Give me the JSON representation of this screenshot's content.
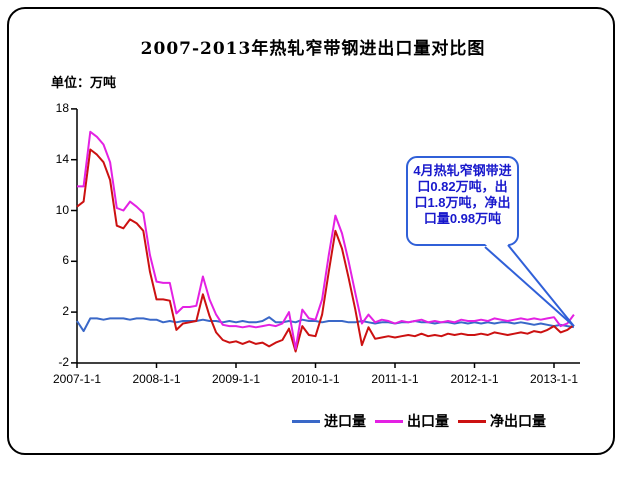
{
  "header": {
    "title": "2007-2013年热轧窄带钢进出口量对比图",
    "unit_label": "单位：万吨"
  },
  "annotation": {
    "text": "4月热轧窄钢带进口0.82万吨，出口1.8万吨，净出口量0.98万吨"
  },
  "legend": [
    {
      "label": "进口量",
      "color": "#3A68C8"
    },
    {
      "label": "出口量",
      "color": "#E321E3"
    },
    {
      "label": "净出口量",
      "color": "#CC1111"
    }
  ],
  "colors": {
    "import_line": "#3A68C8",
    "export_line": "#E321E3",
    "net_export_line": "#CC1111",
    "annotation_border": "#3060D8",
    "annotation_text": "#1818CC",
    "axis": "#000000"
  },
  "chart_data": {
    "type": "line",
    "title": "2007-2013年热轧窄带钢进出口量对比图",
    "unit": "万吨",
    "x_interval": "monthly",
    "x_start": "2007-01",
    "x_end": "2013-04",
    "x_tick_labels": [
      "2007-1-1",
      "2008-1-1",
      "2009-1-1",
      "2010-1-1",
      "2011-1-1",
      "2012-1-1",
      "2013-1-1"
    ],
    "y_ticks": [
      18,
      14,
      10,
      6,
      2,
      -2
    ],
    "ylim": [
      -2,
      18
    ],
    "grid": false,
    "legend_position": "bottom",
    "highlighted_point": {
      "month": "2013-04",
      "import": 0.82,
      "export": 1.8,
      "net_export": 0.98
    },
    "series": [
      {
        "name": "进口量",
        "color": "#3A68C8",
        "values": [
          1.3,
          0.5,
          1.5,
          1.5,
          1.4,
          1.5,
          1.5,
          1.5,
          1.4,
          1.5,
          1.5,
          1.4,
          1.4,
          1.2,
          1.3,
          1.2,
          1.3,
          1.3,
          1.3,
          1.4,
          1.3,
          1.3,
          1.2,
          1.3,
          1.2,
          1.3,
          1.2,
          1.2,
          1.3,
          1.6,
          1.2,
          1.2,
          1.3,
          1.2,
          1.4,
          1.3,
          1.3,
          1.2,
          1.3,
          1.3,
          1.3,
          1.2,
          1.2,
          1.3,
          1.2,
          1.1,
          1.2,
          1.2,
          1.1,
          1.2,
          1.2,
          1.3,
          1.2,
          1.2,
          1.1,
          1.2,
          1.2,
          1.1,
          1.2,
          1.1,
          1.2,
          1.1,
          1.2,
          1.1,
          1.2,
          1.2,
          1.1,
          1.2,
          1.1,
          1.0,
          1.1,
          1.0,
          0.9,
          1.0,
          0.9,
          0.82
        ]
      },
      {
        "name": "出口量",
        "color": "#E321E3",
        "values": [
          11.9,
          11.9,
          16.2,
          15.8,
          15.2,
          13.8,
          10.2,
          10.0,
          10.7,
          10.3,
          9.8,
          6.5,
          4.4,
          4.3,
          4.3,
          1.9,
          2.4,
          2.4,
          2.5,
          4.8,
          3.0,
          1.8,
          1.0,
          0.9,
          0.9,
          0.8,
          0.9,
          0.8,
          0.9,
          1.0,
          0.9,
          1.1,
          2.0,
          -0.9,
          2.2,
          1.5,
          1.4,
          3.0,
          6.5,
          9.6,
          8.2,
          6.0,
          3.5,
          1.1,
          1.8,
          1.2,
          1.4,
          1.3,
          1.1,
          1.3,
          1.2,
          1.3,
          1.4,
          1.2,
          1.3,
          1.2,
          1.3,
          1.2,
          1.4,
          1.3,
          1.3,
          1.4,
          1.3,
          1.5,
          1.4,
          1.3,
          1.4,
          1.5,
          1.4,
          1.5,
          1.4,
          1.5,
          1.6,
          0.9,
          1.1,
          1.8
        ]
      },
      {
        "name": "净出口量",
        "color": "#CC1111",
        "values": [
          10.3,
          10.7,
          14.8,
          14.4,
          13.8,
          12.4,
          8.8,
          8.6,
          9.3,
          9.0,
          8.4,
          5.2,
          3.0,
          3.0,
          2.9,
          0.6,
          1.1,
          1.2,
          1.3,
          3.4,
          1.7,
          0.4,
          -0.2,
          -0.4,
          -0.3,
          -0.5,
          -0.3,
          -0.5,
          -0.4,
          -0.7,
          -0.4,
          -0.2,
          0.7,
          -1.1,
          0.9,
          0.2,
          0.1,
          1.8,
          5.2,
          8.4,
          7.0,
          4.7,
          2.2,
          -0.6,
          0.8,
          -0.1,
          0.0,
          0.1,
          0.0,
          0.1,
          0.2,
          0.1,
          0.3,
          0.1,
          0.2,
          0.1,
          0.3,
          0.2,
          0.3,
          0.2,
          0.2,
          0.3,
          0.2,
          0.4,
          0.3,
          0.2,
          0.3,
          0.4,
          0.3,
          0.5,
          0.4,
          0.6,
          0.9,
          0.4,
          0.6,
          0.98
        ]
      }
    ]
  }
}
